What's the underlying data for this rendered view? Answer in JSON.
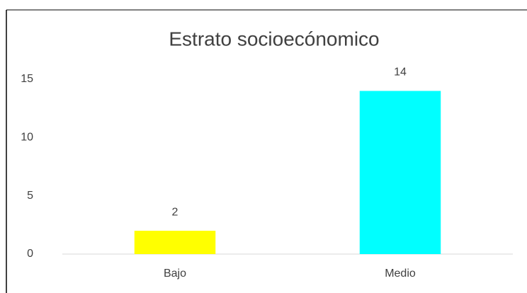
{
  "chart_data": {
    "type": "bar",
    "title": "Estrato socioecónomico",
    "categories": [
      "Bajo",
      "Medio"
    ],
    "values": [
      2,
      14
    ],
    "colors": [
      "#ffff00",
      "#00ffff"
    ],
    "ylim": [
      0,
      15
    ],
    "yticks": [
      0,
      5,
      10,
      15
    ],
    "grid": false
  }
}
